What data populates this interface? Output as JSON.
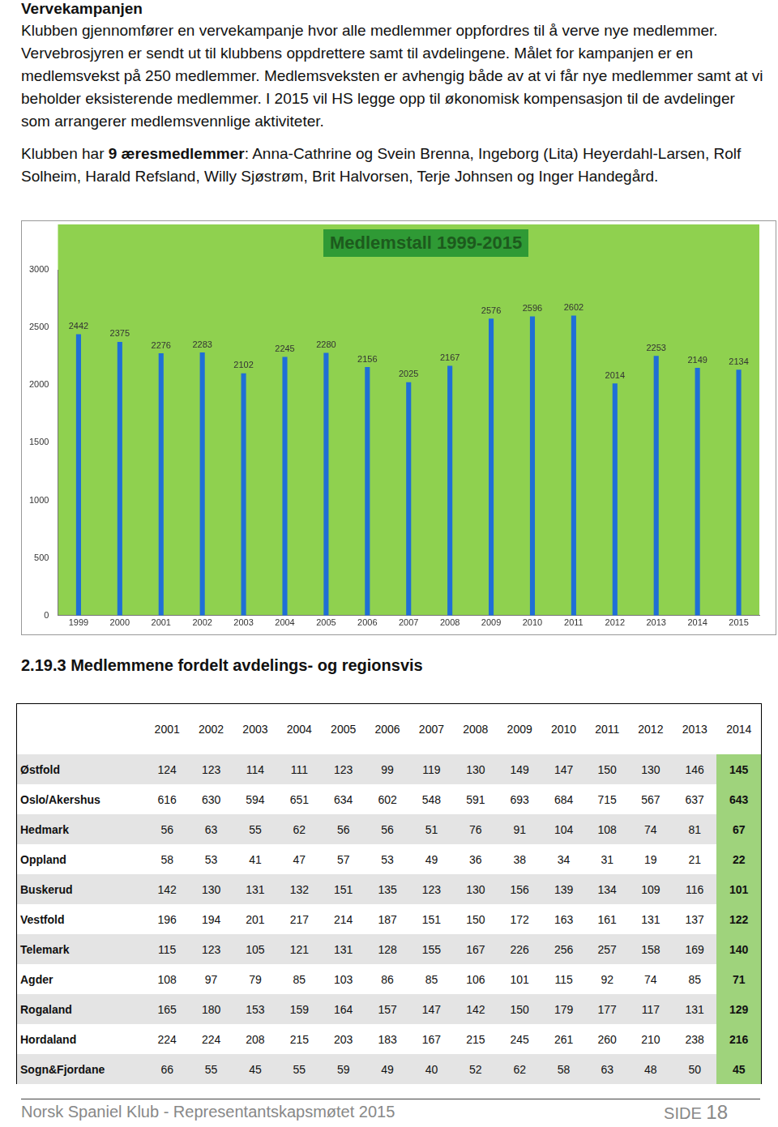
{
  "heading": "Vervekampanjen",
  "paragraph1": "Klubben gjennomfører en vervekampanje hvor alle medlemmer oppfordres til å verve nye medlemmer. Vervebrosjyren er sendt ut til klubbens oppdrettere samt til avdelingene. Målet for kampanjen er en medlemsvekst på 250 medlemmer. Medlemsveksten er avhengig både av at vi får nye medlemmer samt at vi beholder eksisterende medlemmer. I 2015 vil HS legge opp til økonomisk kompensasjon til de avdelinger som arrangerer medlemsvennlige aktiviteter.",
  "paragraph2": {
    "before": "Klubben har ",
    "bold": "9 æresmedlemmer",
    "after": ": Anna-Cathrine og Svein Brenna, Ingeborg (Lita) Heyerdahl-Larsen, Rolf Solheim, Harald Refsland, Willy Sjøstrøm, Brit Halvorsen, Terje Johnsen og Inger Handegård."
  },
  "chart_data": {
    "type": "bar",
    "title": "Medlemstall 1999-2015",
    "categories": [
      "1999",
      "2000",
      "2001",
      "2002",
      "2003",
      "2004",
      "2005",
      "2006",
      "2007",
      "2008",
      "2009",
      "2010",
      "2011",
      "2012",
      "2013",
      "2014",
      "2015"
    ],
    "values": [
      2442,
      2375,
      2276,
      2283,
      2102,
      2245,
      2280,
      2156,
      2025,
      2167,
      2576,
      2596,
      2602,
      2014,
      2253,
      2149,
      2134
    ],
    "color": "#1f6fd6",
    "ylim": [
      0,
      3000
    ],
    "yticks": [
      0,
      500,
      1000,
      1500,
      2000,
      2500,
      3000
    ],
    "grid": false,
    "data_labels": true
  },
  "section": "2.19.3 Medlemmene fordelt avdelings- og regionsvis",
  "table": {
    "header": [
      2001,
      2002,
      2003,
      2004,
      2005,
      2006,
      2007,
      2008,
      2009,
      2010,
      2011,
      2012,
      2013,
      2014
    ],
    "rows": [
      [
        "Østfold",
        124,
        123,
        114,
        111,
        123,
        99,
        119,
        130,
        149,
        147,
        150,
        130,
        146,
        145
      ],
      [
        "Oslo/Akershus",
        616,
        630,
        594,
        651,
        634,
        602,
        548,
        591,
        693,
        684,
        715,
        567,
        637,
        643
      ],
      [
        "Hedmark",
        56,
        63,
        55,
        62,
        56,
        56,
        51,
        76,
        91,
        104,
        108,
        74,
        81,
        67
      ],
      [
        "Oppland",
        58,
        53,
        41,
        47,
        57,
        53,
        49,
        36,
        38,
        34,
        31,
        19,
        21,
        22
      ],
      [
        "Buskerud",
        142,
        130,
        131,
        132,
        151,
        135,
        123,
        130,
        156,
        139,
        134,
        109,
        116,
        101
      ],
      [
        "Vestfold",
        196,
        194,
        201,
        217,
        214,
        187,
        151,
        150,
        172,
        163,
        161,
        131,
        137,
        122
      ],
      [
        "Telemark",
        115,
        123,
        105,
        121,
        131,
        128,
        155,
        167,
        226,
        256,
        257,
        158,
        169,
        140
      ],
      [
        "Agder",
        108,
        97,
        79,
        85,
        103,
        86,
        85,
        106,
        101,
        115,
        92,
        74,
        85,
        71
      ],
      [
        "Rogaland",
        165,
        180,
        153,
        159,
        164,
        157,
        147,
        142,
        150,
        179,
        177,
        117,
        131,
        129
      ],
      [
        "Hordaland",
        224,
        224,
        208,
        215,
        203,
        183,
        167,
        215,
        245,
        261,
        260,
        210,
        238,
        216
      ],
      [
        "Sogn&Fjordane",
        66,
        55,
        45,
        55,
        59,
        49,
        40,
        52,
        62,
        58,
        63,
        48,
        50,
        45
      ]
    ]
  },
  "footer": {
    "text": "Norsk Spaniel Klub - Representantskapsmøtet 2015",
    "page_label": "SIDE",
    "page_number": 18
  }
}
